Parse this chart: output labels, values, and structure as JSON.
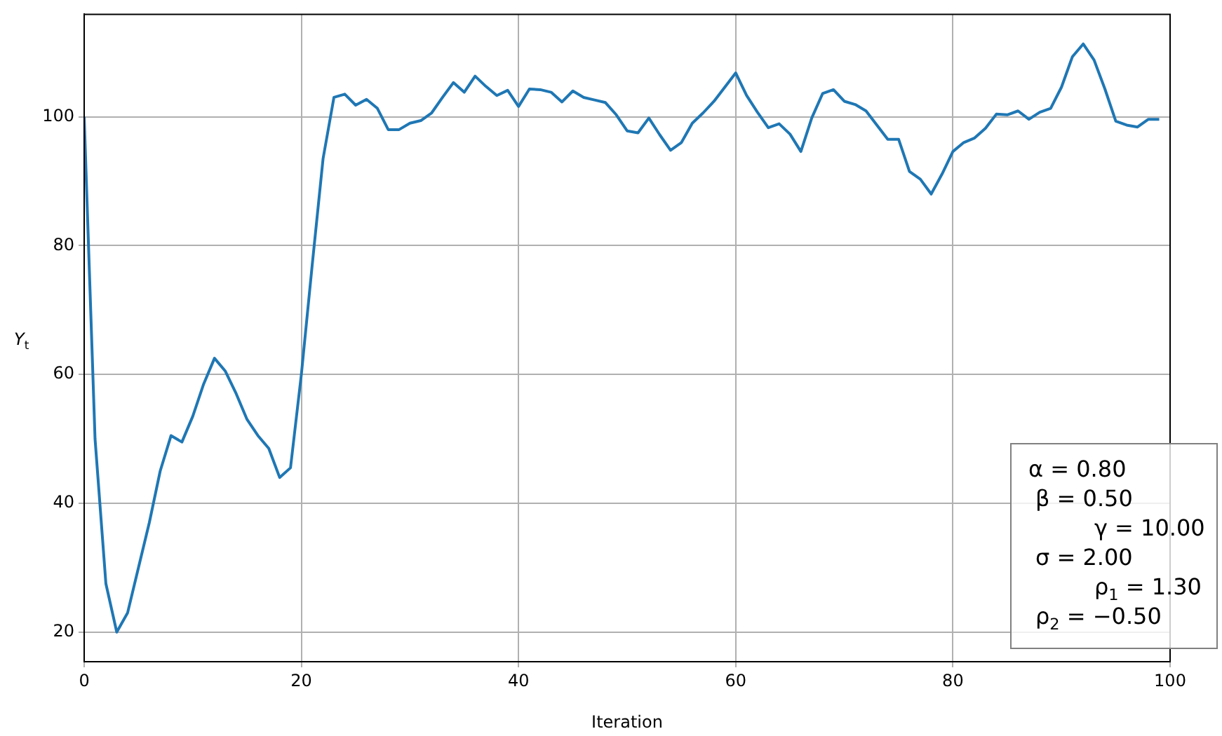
{
  "chart_data": {
    "type": "line",
    "xlabel": "Iteration",
    "ylabel": "Y$_{t}$",
    "x": [
      0,
      1,
      2,
      3,
      4,
      5,
      6,
      7,
      8,
      9,
      10,
      11,
      12,
      13,
      14,
      15,
      16,
      17,
      18,
      19,
      20,
      21,
      22,
      23,
      24,
      25,
      26,
      27,
      28,
      29,
      30,
      31,
      32,
      33,
      34,
      35,
      36,
      37,
      38,
      39,
      40,
      41,
      42,
      43,
      44,
      45,
      46,
      47,
      48,
      49,
      50,
      51,
      52,
      53,
      54,
      55,
      56,
      57,
      58,
      59,
      60,
      61,
      62,
      63,
      64,
      65,
      66,
      67,
      68,
      69,
      70,
      71,
      72,
      73,
      74,
      75,
      76,
      77,
      78,
      79,
      80,
      81,
      82,
      83,
      84,
      85,
      86,
      87,
      88,
      89,
      90,
      91,
      92,
      93,
      94,
      95,
      96,
      97,
      98,
      99
    ],
    "series": [
      {
        "color": "#1f77b4",
        "values": [
          100,
          50,
          27.5,
          20,
          23,
          30,
          37,
          45,
          50.5,
          49.5,
          53.5,
          58.5,
          62.5,
          60.5,
          57,
          53,
          50.5,
          48.5,
          44,
          45.5,
          60,
          77,
          93.5,
          103,
          103.5,
          101.8,
          102.7,
          101.3,
          98,
          98,
          99,
          99.4,
          100.6,
          103,
          105.3,
          103.8,
          106.3,
          104.7,
          103.3,
          104.1,
          101.6,
          104.3,
          104.2,
          103.8,
          102.3,
          104,
          103,
          102.6,
          102.2,
          100.3,
          97.8,
          97.5,
          99.8,
          97.2,
          94.8,
          96,
          99,
          100.6,
          102.4,
          104.6,
          106.8,
          103.3,
          100.7,
          98.3,
          98.9,
          97.3,
          94.6,
          99.8,
          103.6,
          104.2,
          102.4,
          101.9,
          100.9,
          98.7,
          96.5,
          96.5,
          91.5,
          90.3,
          88,
          91.1,
          94.6,
          96,
          96.7,
          98.2,
          100.4,
          100.3,
          100.9,
          99.6,
          100.7,
          101.3,
          104.6,
          109.3,
          111.3,
          108.8,
          104.3,
          99.3,
          98.7,
          98.4,
          99.6,
          99.6
        ]
      }
    ],
    "xlim": [
      0,
      100
    ],
    "xticks": [
      0,
      20,
      40,
      60,
      80,
      100
    ],
    "ylim": [
      15.4,
      115.9
    ],
    "yticks": [
      20,
      40,
      60,
      80,
      100
    ],
    "grid": true,
    "marker": "none",
    "line_style": "solid",
    "annotations": [
      "α = 0.80",
      "β = 0.50",
      "γ = 10.00",
      "σ = 2.00",
      "ρ$_{1}$ = 1.30",
      "ρ$_{2}$ = −0.50"
    ]
  }
}
